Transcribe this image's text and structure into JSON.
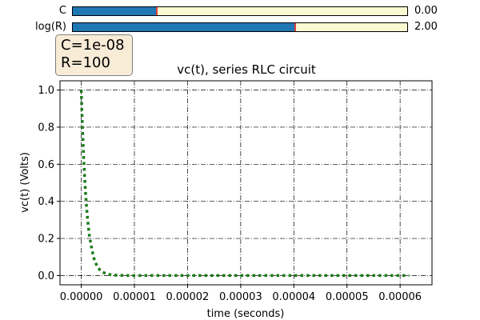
{
  "sliders": [
    {
      "label": "C",
      "value_text": "0.00",
      "fraction": 0.25,
      "fill_color": "#1f77b4",
      "track_color": "#fafad2"
    },
    {
      "label": "log(R)",
      "value_text": "2.00",
      "fraction": 0.665,
      "fill_color": "#1f77b4",
      "track_color": "#fafad2"
    }
  ],
  "info_box": {
    "line1": "C=1e-08",
    "line2": "R=100"
  },
  "chart_data": {
    "type": "line",
    "title": "vc(t), series RLC circuit",
    "xlabel": "time (seconds)",
    "ylabel": "vc(t) (Volts)",
    "xlim": [
      -4e-06,
      6.6e-05
    ],
    "ylim": [
      -0.05,
      1.05
    ],
    "xticks": [
      0.0,
      1e-05,
      2e-05,
      3e-05,
      4e-05,
      5e-05,
      6e-05
    ],
    "xtick_labels": [
      "0.00000",
      "0.00001",
      "0.00002",
      "0.00003",
      "0.00004",
      "0.00005",
      "0.00006"
    ],
    "yticks": [
      0.0,
      0.2,
      0.4,
      0.6,
      0.8,
      1.0
    ],
    "ytick_labels": [
      "0.0",
      "0.2",
      "0.4",
      "0.6",
      "0.8",
      "1.0"
    ],
    "grid": true,
    "line_color": "#1a7a1a",
    "line_style": "dotted",
    "series": [
      {
        "x": [
          0.0,
          2e-07,
          4e-07,
          6e-07,
          8e-07,
          1e-06,
          1.2e-06,
          1.5e-06,
          2e-06,
          2.5e-06,
          3e-06,
          3.5e-06,
          4e-06,
          5e-06,
          6e-06,
          8e-06,
          1e-05,
          1.5e-05,
          2e-05,
          3e-05,
          4e-05,
          5e-05,
          6.17e-05
        ],
        "values": [
          1.0,
          0.82,
          0.67,
          0.55,
          0.45,
          0.37,
          0.3,
          0.22,
          0.14,
          0.08,
          0.05,
          0.03,
          0.018,
          0.007,
          0.0025,
          0.0003,
          0.0,
          0.0,
          0.0,
          0.0,
          0.0,
          0.0,
          0.0
        ]
      }
    ]
  }
}
